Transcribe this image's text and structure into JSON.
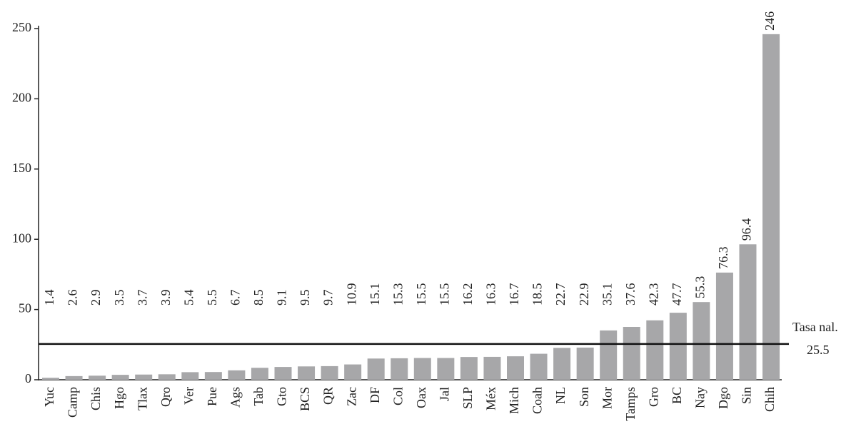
{
  "chart_data": {
    "type": "bar",
    "categories": [
      "Yuc",
      "Camp",
      "Chis",
      "Hgo",
      "Tlax",
      "Qro",
      "Ver",
      "Pue",
      "Ags",
      "Tab",
      "Gto",
      "BCS",
      "QR",
      "Zac",
      "DF",
      "Col",
      "Oax",
      "Jal",
      "SLP",
      "Méx",
      "Mich",
      "Coah",
      "NL",
      "Son",
      "Mor",
      "Tamps",
      "Gro",
      "BC",
      "Nay",
      "Dgo",
      "Sin",
      "Chih"
    ],
    "values": [
      1.4,
      2.6,
      2.9,
      3.5,
      3.7,
      3.9,
      5.4,
      5.5,
      6.7,
      8.5,
      9.1,
      9.5,
      9.7,
      10.9,
      15.1,
      15.3,
      15.5,
      15.5,
      16.2,
      16.3,
      16.7,
      18.5,
      22.7,
      22.9,
      35.1,
      37.6,
      42.3,
      47.7,
      55.3,
      76.3,
      96.4,
      246
    ],
    "color": "#a7a7a9",
    "ylim": [
      0,
      250
    ],
    "yticks": [
      0,
      50,
      100,
      150,
      200,
      250
    ],
    "reference_line": {
      "label": "Tasa nal.",
      "value": 25.5
    }
  }
}
